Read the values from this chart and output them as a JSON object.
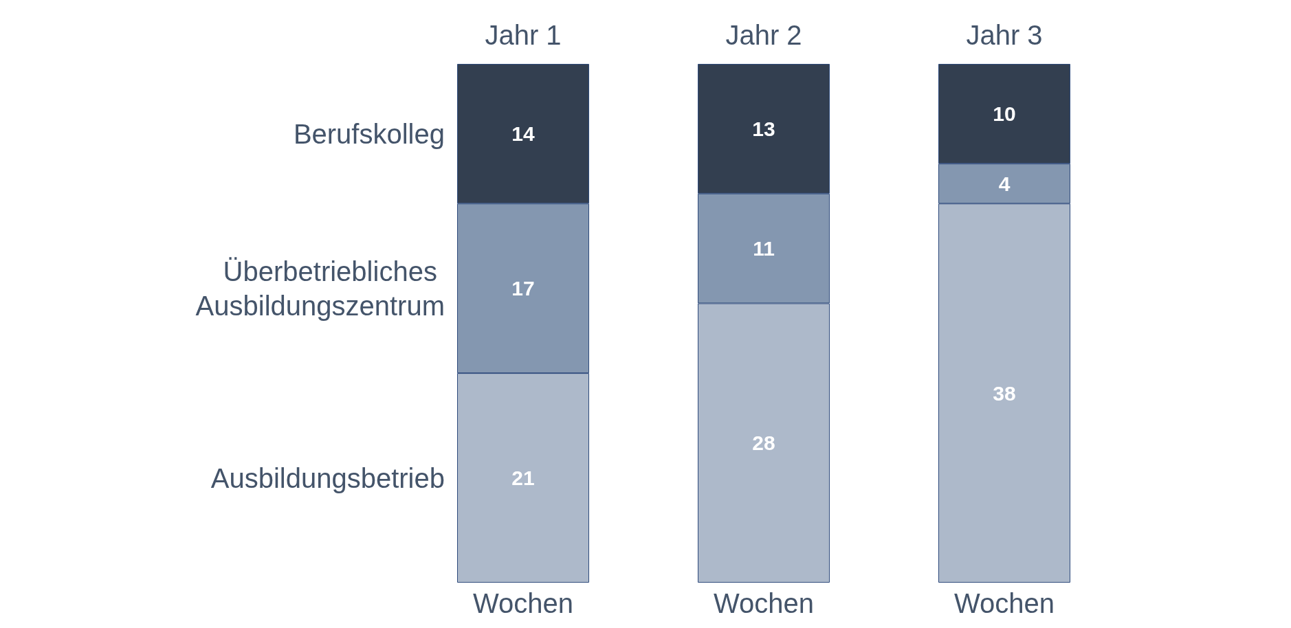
{
  "chart_data": {
    "type": "bar",
    "stacked": true,
    "data_labels": true,
    "legend": "left",
    "categories": [
      "Jahr 1",
      "Jahr 2",
      "Jahr 3"
    ],
    "series": [
      {
        "name": "Ausbildungsbetrieb",
        "color": "#adb9ca",
        "values": [
          21,
          28,
          38
        ]
      },
      {
        "name": "Überbetriebliches Ausbildungszentrum",
        "color": "#8497b0",
        "values": [
          17,
          11,
          4
        ]
      },
      {
        "name": "Berufskolleg",
        "color": "#333f50",
        "values": [
          14,
          13,
          10
        ]
      }
    ],
    "annotations": [
      {
        "text": "Wochen",
        "x": "Jahr 1",
        "y": 0
      },
      {
        "text": "Wochen",
        "x": "Jahr 2",
        "y": 0
      },
      {
        "text": "Wochen",
        "x": "Jahr 3",
        "y": 0
      }
    ]
  }
}
